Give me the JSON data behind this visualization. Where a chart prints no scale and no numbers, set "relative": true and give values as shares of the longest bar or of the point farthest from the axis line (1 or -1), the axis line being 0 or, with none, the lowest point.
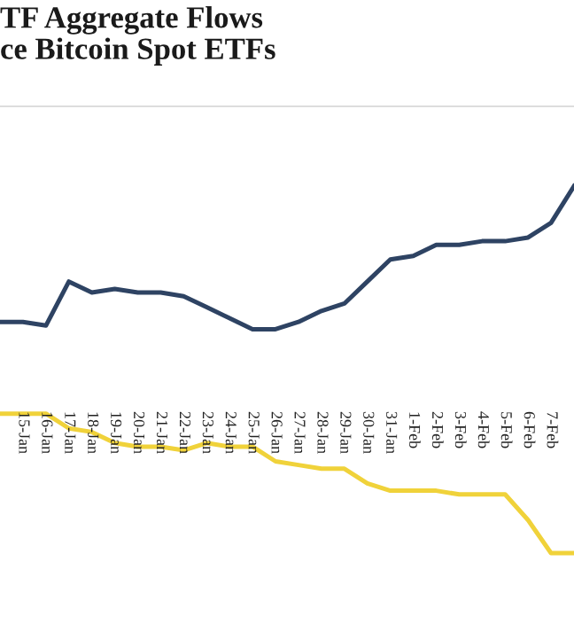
{
  "chart_data": {
    "type": "line",
    "title": "TF Aggregate Flows\nce Bitcoin Spot ETFs",
    "relative": true,
    "tick_labels": "x",
    "categories": [
      null,
      "15-Jan",
      "16-Jan",
      "17-Jan",
      "18-Jan",
      "19-Jan",
      "20-Jan",
      "21-Jan",
      "22-Jan",
      "23-Jan",
      "24-Jan",
      "25-Jan",
      "26-Jan",
      "27-Jan",
      "28-Jan",
      "29-Jan",
      "30-Jan",
      "31-Jan",
      "1-Feb",
      "2-Feb",
      "3-Feb",
      "4-Feb",
      "5-Feb",
      "6-Feb",
      "7-Feb",
      null
    ],
    "series": [
      {
        "color": "#2e4363",
        "values": [
          0.63,
          0.63,
          0.62,
          0.74,
          0.71,
          0.72,
          0.71,
          0.71,
          0.7,
          0.67,
          0.64,
          0.61,
          0.61,
          0.63,
          0.66,
          0.68,
          0.74,
          0.8,
          0.81,
          0.84,
          0.84,
          0.85,
          0.85,
          0.86,
          0.9,
          1
        ]
      },
      {
        "color": "#f0d23a",
        "values": [
          0.38,
          0.38,
          0.38,
          0.34,
          0.33,
          0.3,
          0.29,
          0.29,
          0.28,
          0.3,
          0.29,
          0.29,
          0.25,
          0.24,
          0.23,
          0.23,
          0.19,
          0.17,
          0.17,
          0.17,
          0.16,
          0.16,
          0.16,
          0.09,
          0,
          0
        ]
      }
    ]
  }
}
